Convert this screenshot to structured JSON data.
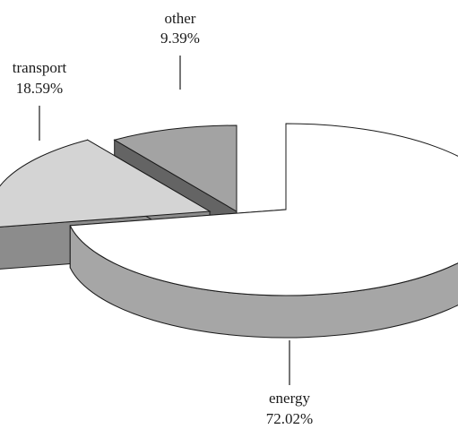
{
  "chart_data": {
    "type": "pie",
    "style": "3d-exploded",
    "slices": [
      {
        "label": "energy",
        "value": 72.02,
        "value_text": "72.02%",
        "top_color": "#ffffff",
        "side_color": "#a6a6a6"
      },
      {
        "label": "transport",
        "value": 18.59,
        "value_text": "18.59%",
        "top_color": "#d4d4d4",
        "side_color": "#8c8c8c"
      },
      {
        "label": "other",
        "value": 9.39,
        "value_text": "9.39%",
        "top_color": "#a3a3a3",
        "side_color": "#646464"
      }
    ]
  }
}
